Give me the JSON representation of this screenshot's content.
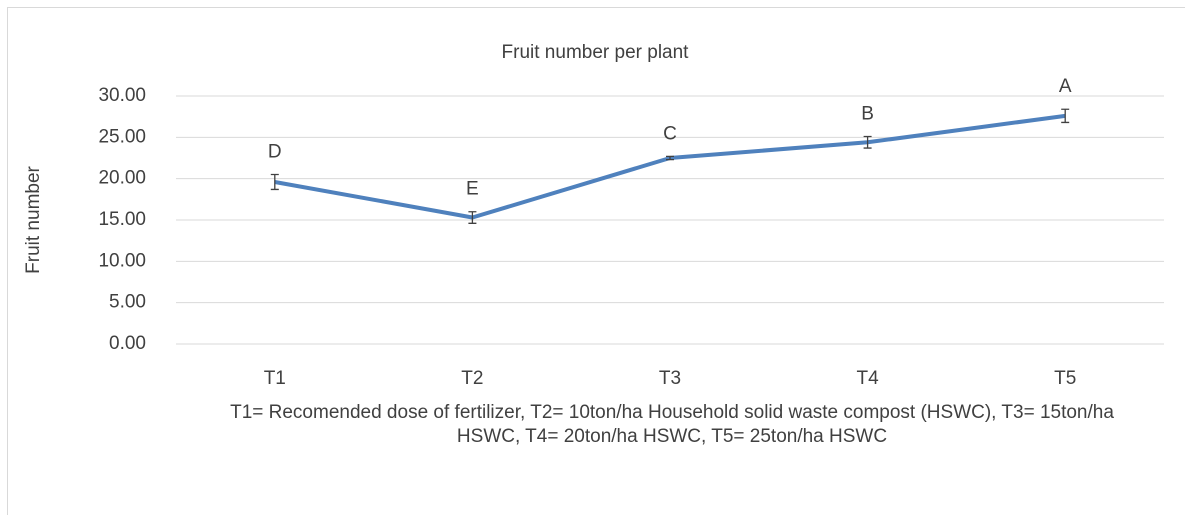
{
  "chart_data": {
    "type": "line",
    "title": "Fruit number per plant",
    "ylabel": "Fruit number",
    "xlabel": "T1= Recomended dose of fertilizer, T2= 10ton/ha Household solid waste compost (HSWC), T3= 15ton/ha HSWC, T4= 20ton/ha HSWC, T5= 25ton/ha HSWC",
    "categories": [
      "T1",
      "T2",
      "T3",
      "T4",
      "T5"
    ],
    "series": [
      {
        "name": "Fruit number",
        "color": "#4f81bd",
        "values": [
          19.6,
          15.3,
          22.5,
          24.4,
          27.6
        ],
        "errors": [
          0.9,
          0.7,
          0.2,
          0.7,
          0.8
        ]
      }
    ],
    "annotations": [
      "D",
      "E",
      "C",
      "B",
      "A"
    ],
    "ylim": [
      0,
      30
    ],
    "yticks": [
      {
        "value": 0,
        "label": "0.00"
      },
      {
        "value": 5,
        "label": "5.00"
      },
      {
        "value": 10,
        "label": "10.00"
      },
      {
        "value": 15,
        "label": "15.00"
      },
      {
        "value": 20,
        "label": "20.00"
      },
      {
        "value": 25,
        "label": "25.00"
      },
      {
        "value": 30,
        "label": "30.00"
      }
    ],
    "grid": true
  }
}
